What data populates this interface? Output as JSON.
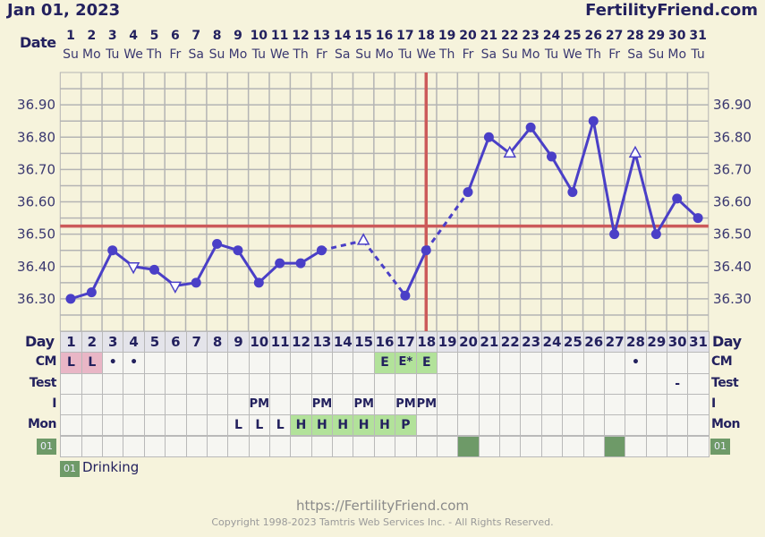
{
  "header": {
    "date": "Jan 01, 2023",
    "brand": "FertilityFriend.com",
    "date_label": "Date"
  },
  "days": [
    "1",
    "2",
    "3",
    "4",
    "5",
    "6",
    "7",
    "8",
    "9",
    "10",
    "11",
    "12",
    "13",
    "14",
    "15",
    "16",
    "17",
    "18",
    "19",
    "20",
    "21",
    "22",
    "23",
    "24",
    "25",
    "26",
    "27",
    "28",
    "29",
    "30",
    "31"
  ],
  "weekdays": [
    "Su",
    "Mo",
    "Tu",
    "We",
    "Th",
    "Fr",
    "Sa",
    "Su",
    "Mo",
    "Tu",
    "We",
    "Th",
    "Fr",
    "Sa",
    "Su",
    "Mo",
    "Tu",
    "We",
    "Th",
    "Fr",
    "Sa",
    "Su",
    "Mo",
    "Tu",
    "We",
    "Th",
    "Fr",
    "Sa",
    "Su",
    "Mo",
    "Tu"
  ],
  "colors": {
    "background": "#f6f3dc",
    "line": "#4a3fc7",
    "coverline": "#cc5a5a",
    "grid": "#b4b4b4",
    "cm_pink": "#e9b6c6",
    "fertile_green": "#b2e29a",
    "tag_green": "#6e9a68"
  },
  "chart_data": {
    "type": "line",
    "ylim": [
      36.2,
      37.0
    ],
    "yticks": [
      "36.30",
      "36.40",
      "36.50",
      "36.60",
      "36.70",
      "36.80",
      "36.90"
    ],
    "grid": true,
    "coverline": 36.525,
    "ovulation_day": 18,
    "series": [
      {
        "values": [
          36.3,
          36.32,
          36.45,
          36.4,
          36.39,
          36.34,
          36.35,
          36.47,
          36.45,
          36.35,
          36.41,
          36.41,
          36.45,
          null,
          36.48,
          null,
          36.31,
          36.45,
          null,
          36.63,
          36.8,
          36.75,
          36.83,
          36.74,
          36.63,
          36.85,
          36.5,
          36.75,
          36.5,
          36.61,
          36.55
        ],
        "markers": [
          "dot",
          "dot",
          "dot",
          "tri-down",
          "dot",
          "tri-down",
          "dot",
          "dot",
          "dot",
          "dot",
          "dot",
          "dot",
          "dot",
          null,
          "tri-up",
          null,
          "dot",
          "dot",
          null,
          "dot",
          "dot",
          "tri-up",
          "dot",
          "dot",
          "dot",
          "dot",
          "dot",
          "tri-up",
          "dot",
          "dot",
          "dot"
        ]
      }
    ]
  },
  "table": {
    "day_label": "Day",
    "rows": [
      {
        "label": "CM",
        "cells": {
          "1": "L",
          "2": "L",
          "3": "•",
          "4": "•",
          "16": "E",
          "17": "E*",
          "18": "E",
          "28": "•"
        },
        "fill": {
          "1": "pink",
          "2": "pink",
          "16": "green",
          "17": "green",
          "18": "green"
        }
      },
      {
        "label": "Test",
        "cells": {
          "30": "-"
        },
        "fill": {}
      },
      {
        "label": "I",
        "cells": {
          "10": "PM",
          "13": "PM",
          "15": "PM",
          "17": "PM",
          "18": "PM"
        },
        "fill": {}
      },
      {
        "label": "Mon",
        "cells": {
          "9": "L",
          "10": "L",
          "11": "L",
          "12": "H",
          "13": "H",
          "14": "H",
          "15": "H",
          "16": "H",
          "17": "P"
        },
        "fill": {
          "12": "green",
          "13": "green",
          "14": "green",
          "15": "green",
          "16": "green",
          "17": "green"
        }
      },
      {
        "label": "01",
        "tag": true,
        "cells": {},
        "fill": {
          "20": "tag",
          "27": "tag"
        }
      }
    ]
  },
  "legend": {
    "tag": "01",
    "label": "Drinking"
  },
  "footer": {
    "url": "https://FertilityFriend.com",
    "copyright": "Copyright 1998-2023 Tamtris Web Services Inc. - All Rights Reserved."
  }
}
